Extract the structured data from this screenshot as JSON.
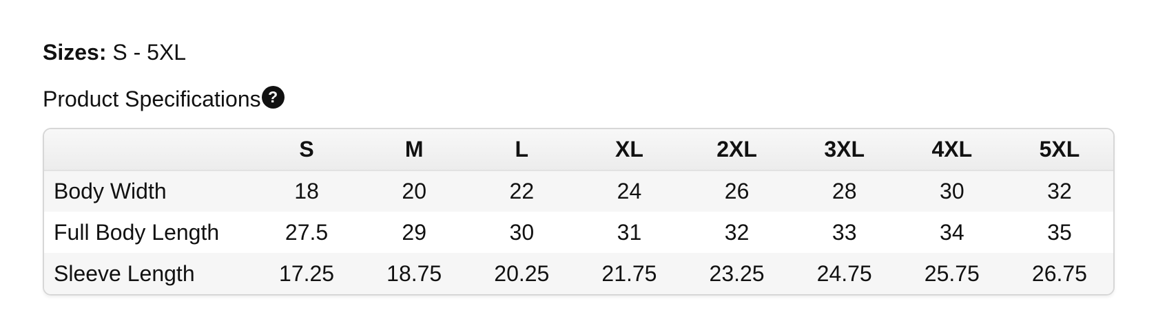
{
  "sizes": {
    "label": "Sizes:",
    "value": "S - 5XL"
  },
  "spec": {
    "title": "Product Specifications",
    "help_icon": "?"
  },
  "table": {
    "size_columns": [
      "S",
      "M",
      "L",
      "XL",
      "2XL",
      "3XL",
      "4XL",
      "5XL"
    ],
    "rows": [
      {
        "label": "Body Width",
        "values": [
          "18",
          "20",
          "22",
          "24",
          "26",
          "28",
          "30",
          "32"
        ]
      },
      {
        "label": "Full Body Length",
        "values": [
          "27.5",
          "29",
          "30",
          "31",
          "32",
          "33",
          "34",
          "35"
        ]
      },
      {
        "label": "Sleeve Length",
        "values": [
          "17.25",
          "18.75",
          "20.25",
          "21.75",
          "23.25",
          "24.75",
          "25.75",
          "26.75"
        ]
      }
    ]
  },
  "colors": {
    "text": "#111111",
    "header_bg_top": "#f8f8f8",
    "header_bg_bottom": "#ececec",
    "stripe_row_bg": "#f6f6f6",
    "table_border": "#d7d7d7",
    "help_badge_bg": "#111111",
    "help_badge_fg": "#ffffff"
  }
}
